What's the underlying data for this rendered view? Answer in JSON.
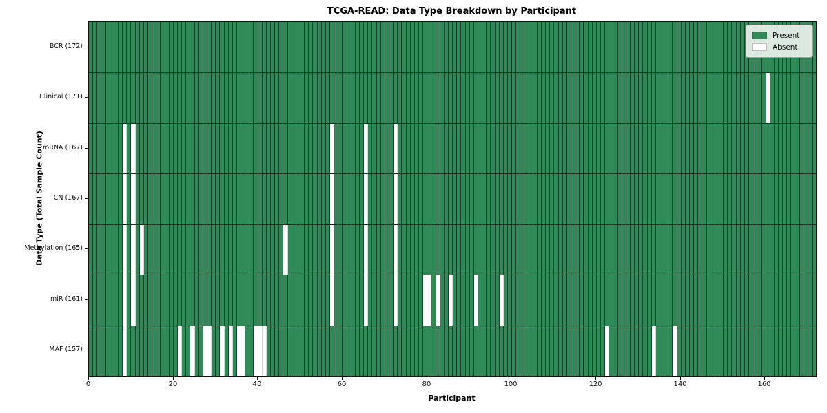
{
  "title": "TCGA-READ: Data Type Breakdown by Participant",
  "legend": {
    "items": [
      {
        "label": "Present",
        "color": "#2f8a57"
      },
      {
        "label": "Absent",
        "color": "#ffffff"
      }
    ],
    "position": "upper right"
  },
  "chart_data": {
    "type": "heatmap",
    "title": "TCGA-READ: Data Type Breakdown by Participant",
    "xlabel": "Participant",
    "ylabel": "Data Type (Total Sample Count)",
    "x_range": [
      0,
      172
    ],
    "n_participants": 172,
    "x_ticks": [
      0,
      20,
      40,
      60,
      80,
      100,
      120,
      140,
      160
    ],
    "grid": "column-edges",
    "legend_position": "upper right",
    "colors": {
      "present": "#2f8a57",
      "absent": "#ffffff",
      "cell_edge_present": "rgba(13,34,21,0.68)",
      "cell_edge_absent": "rgba(175,185,176,0.55)",
      "row_divider": "#14311f",
      "frame": "#111111"
    },
    "rows": [
      {
        "label": "BCR (172)",
        "name": "BCR",
        "total": 172,
        "absent": []
      },
      {
        "label": "Clinical (171)",
        "name": "Clinical",
        "total": 171,
        "absent": [
          160
        ]
      },
      {
        "label": "mRNA (167)",
        "name": "mRNA",
        "total": 167,
        "absent": [
          8,
          10,
          57,
          65,
          72
        ]
      },
      {
        "label": "CN (167)",
        "name": "CN",
        "total": 167,
        "absent": [
          8,
          10,
          57,
          65,
          72
        ]
      },
      {
        "label": "Methylation (165)",
        "name": "Methylation",
        "total": 165,
        "absent": [
          8,
          10,
          12,
          46,
          57,
          65,
          72
        ]
      },
      {
        "label": "miR (161)",
        "name": "miR",
        "total": 161,
        "absent": [
          8,
          10,
          57,
          65,
          72,
          79,
          80,
          82,
          85,
          91,
          97
        ]
      },
      {
        "label": "MAF (157)",
        "name": "MAF",
        "total": 157,
        "absent": [
          8,
          21,
          24,
          27,
          28,
          31,
          33,
          35,
          36,
          39,
          40,
          41,
          122,
          133,
          138
        ]
      }
    ]
  }
}
